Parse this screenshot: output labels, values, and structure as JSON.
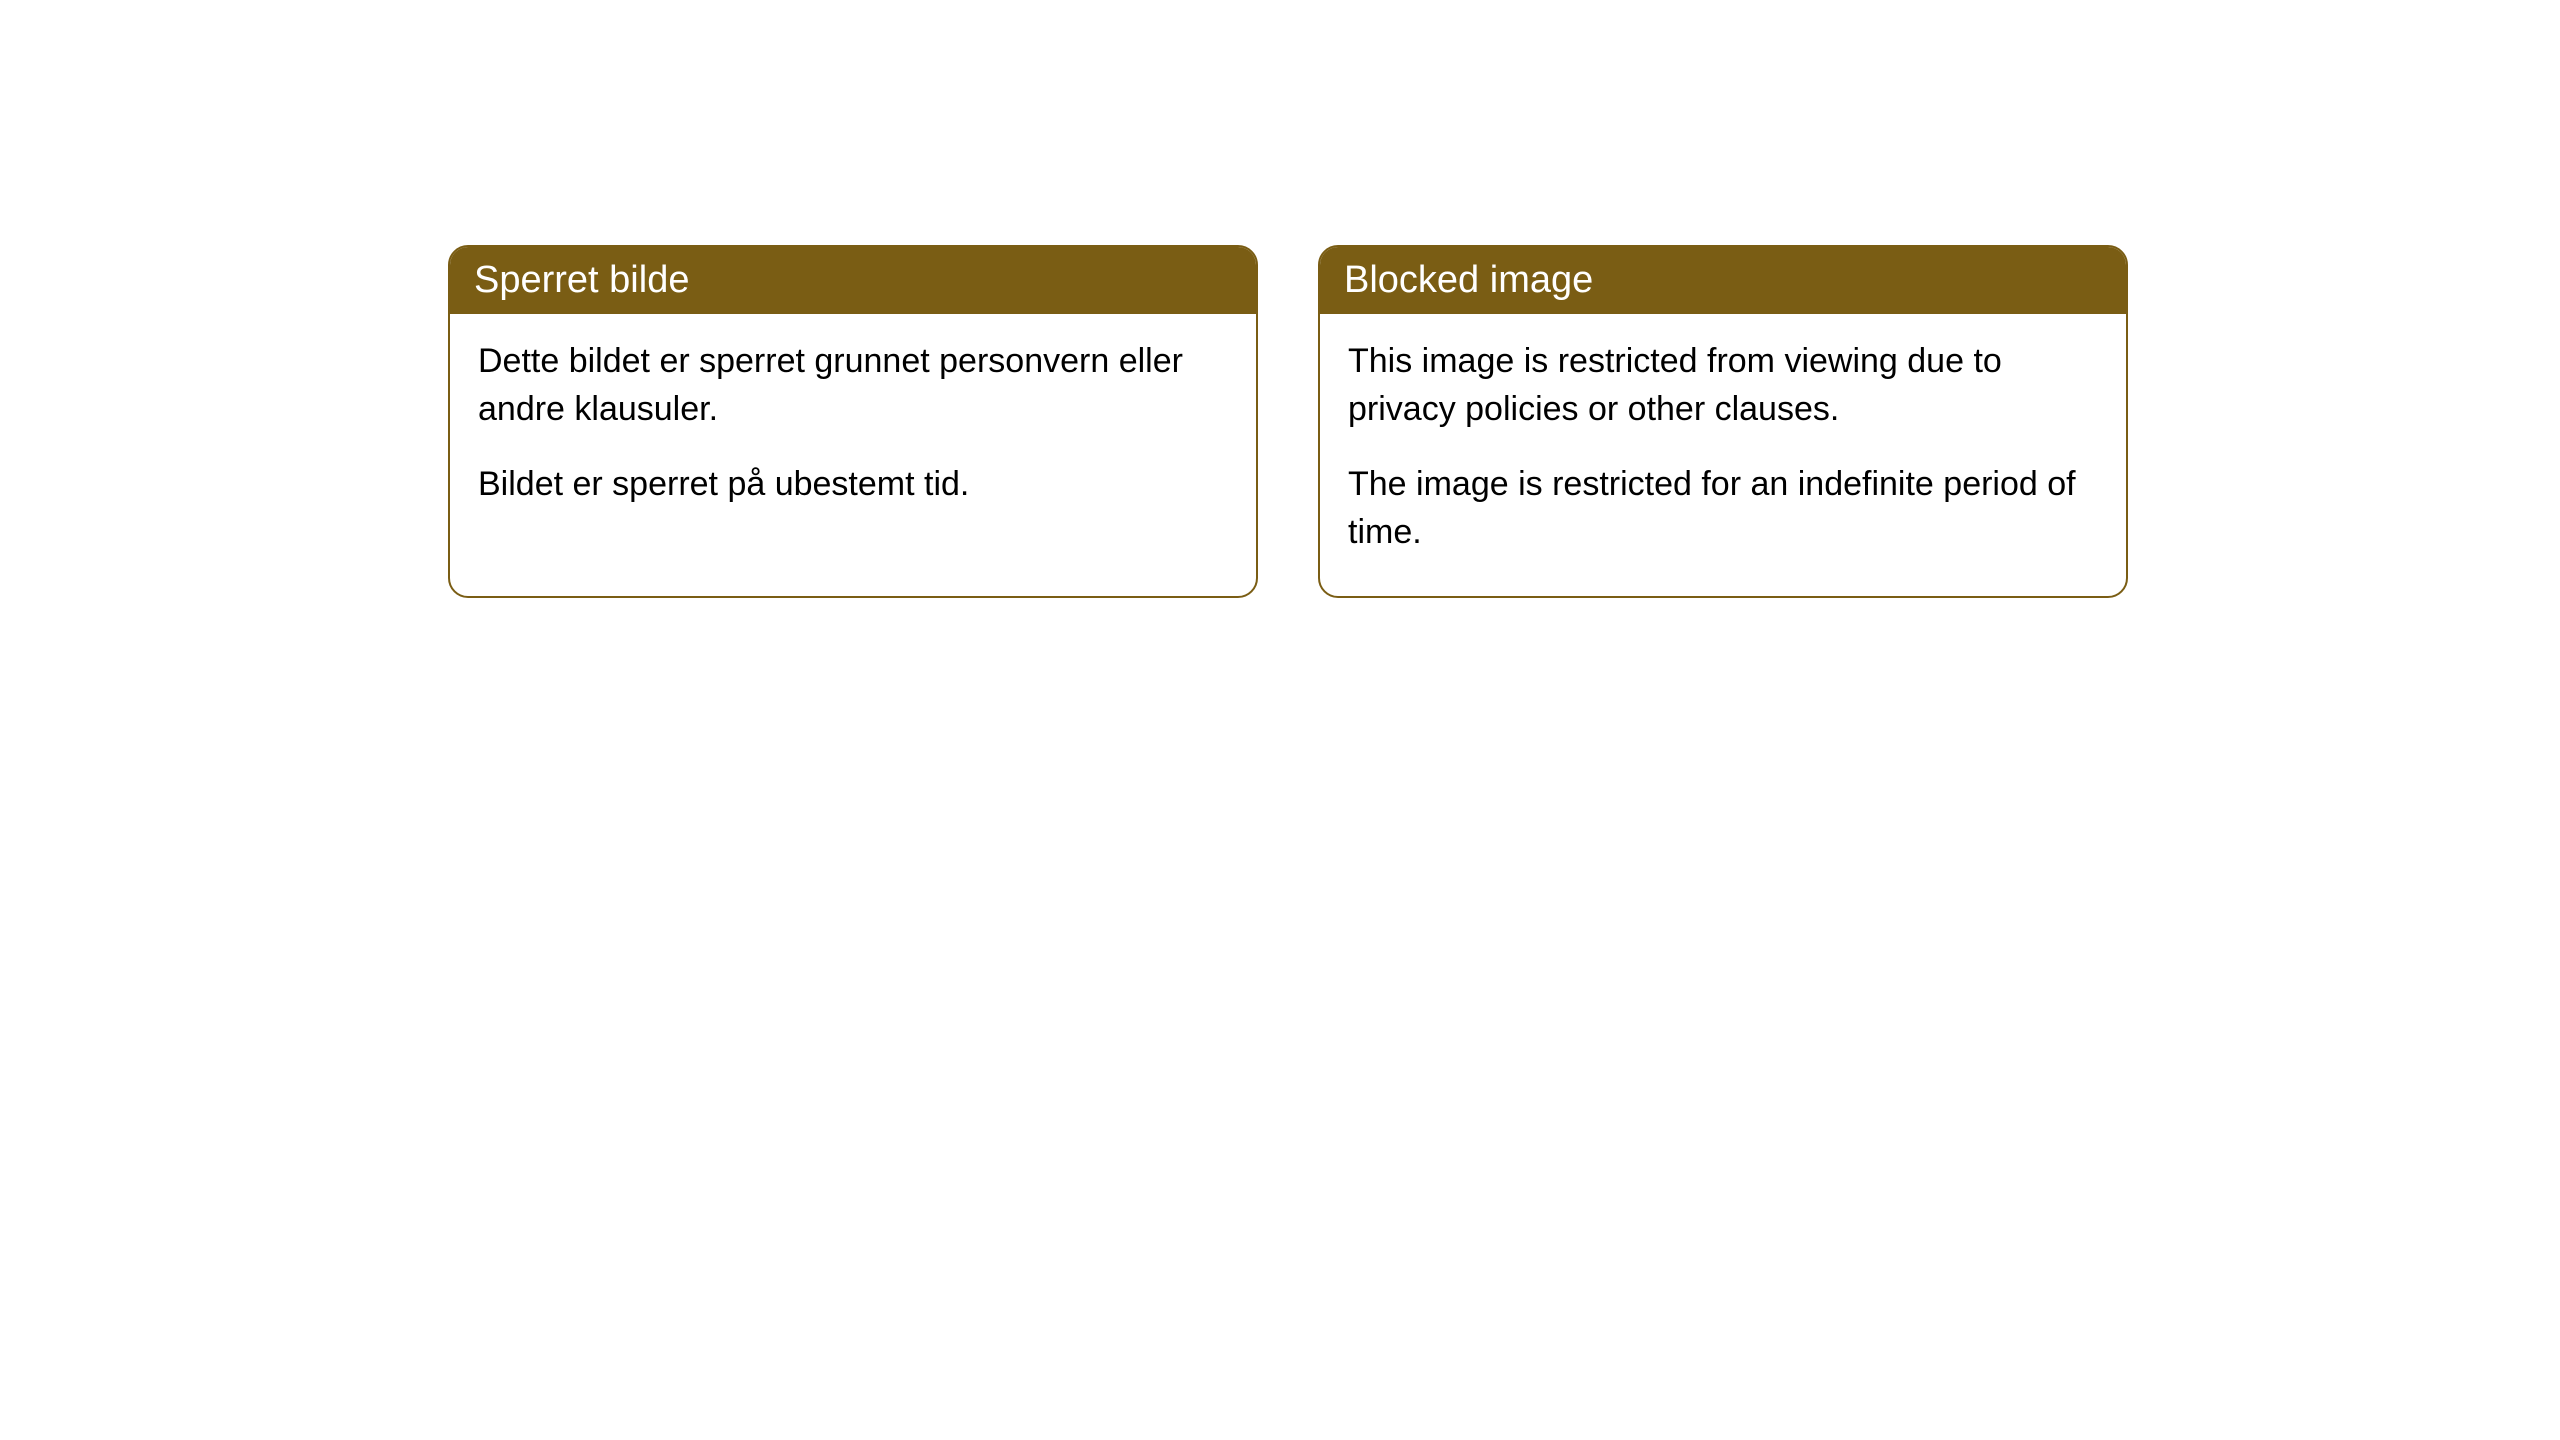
{
  "cards": [
    {
      "title": "Sperret bilde",
      "paragraph1": "Dette bildet er sperret grunnet personvern eller andre klausuler.",
      "paragraph2": "Bildet er sperret på ubestemt tid."
    },
    {
      "title": "Blocked image",
      "paragraph1": "This image is restricted from viewing due to privacy policies or other clauses.",
      "paragraph2": "The image is restricted for an indefinite period of time."
    }
  ],
  "style": {
    "header_bg_color": "#7a5d14",
    "header_text_color": "#ffffff",
    "border_color": "#7a5d14",
    "body_bg_color": "#ffffff",
    "body_text_color": "#000000",
    "border_radius": 20,
    "title_fontsize": 38,
    "body_fontsize": 34
  }
}
